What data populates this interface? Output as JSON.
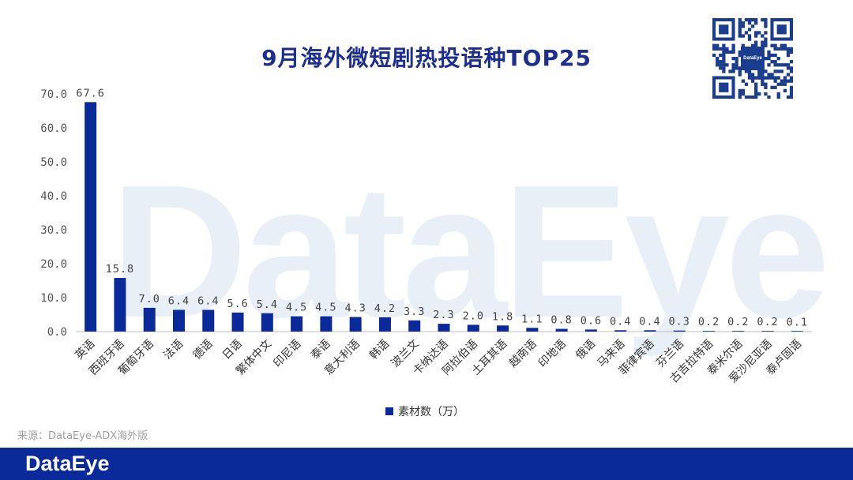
{
  "brand": {
    "watermark": "DataEye",
    "footer_logo": "DataEye",
    "qr_label": "DataEye"
  },
  "source": "来源：DataEye-ADX海外版",
  "colors": {
    "bar": "#0a2a9a",
    "title": "#1c2f91",
    "footer": "#0a2a9a"
  },
  "chart_data": {
    "type": "bar",
    "title": "9月海外微短剧热投语种TOP25",
    "xlabel": "",
    "ylabel": "",
    "ylim": [
      0,
      70
    ],
    "yticks": [
      "0.0",
      "10.0",
      "20.0",
      "30.0",
      "40.0",
      "50.0",
      "60.0",
      "70.0"
    ],
    "categories": [
      "英语",
      "西班牙语",
      "葡萄牙语",
      "法语",
      "德语",
      "日语",
      "繁体中文",
      "印尼语",
      "泰语",
      "意大利语",
      "韩语",
      "波兰文",
      "卡纳达语",
      "阿拉伯语",
      "土耳其语",
      "越南语",
      "印地语",
      "俄语",
      "马来语",
      "菲律宾语",
      "芬兰语",
      "古吉拉特语",
      "泰米尔语",
      "爱沙尼亚语",
      "泰卢固语"
    ],
    "series": [
      {
        "name": "素材数（万）",
        "values": [
          67.6,
          15.8,
          7.0,
          6.4,
          6.4,
          5.6,
          5.4,
          4.5,
          4.5,
          4.3,
          4.2,
          3.3,
          2.3,
          2.0,
          1.8,
          1.1,
          0.8,
          0.6,
          0.4,
          0.4,
          0.3,
          0.2,
          0.2,
          0.2,
          0.1
        ]
      }
    ],
    "value_labels": [
      "67.6",
      "15.8",
      "7.0",
      "6.4",
      "6.4",
      "5.6",
      "5.4",
      "4.5",
      "4.5",
      "4.3",
      "4.2",
      "3.3",
      "2.3",
      "2.0",
      "1.8",
      "1.1",
      "0.8",
      "0.6",
      "0.4",
      "0.4",
      "0.3",
      "0.2",
      "0.2",
      "0.2",
      "0.1"
    ],
    "legend_position": "bottom",
    "grid": false
  }
}
